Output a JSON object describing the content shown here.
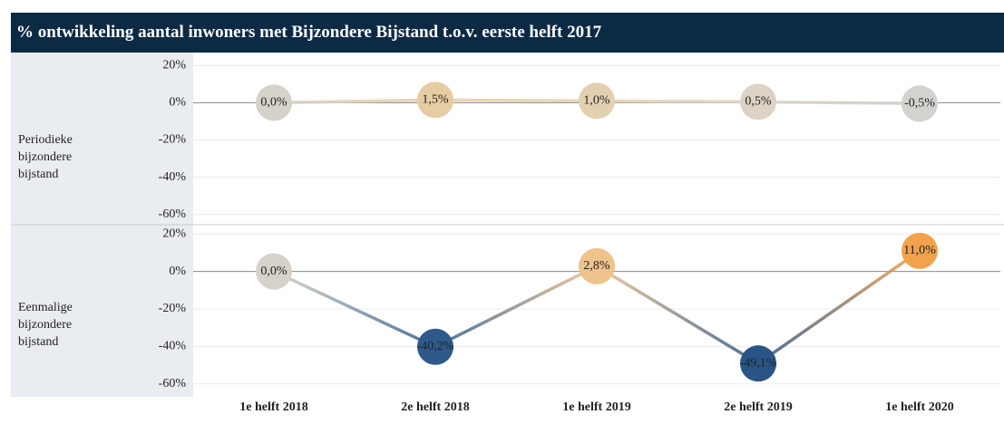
{
  "title": "% ontwikkeling aantal inwoners met Bijzondere Bijstand t.o.v. eerste helft 2017",
  "chart_data": [
    {
      "type": "line",
      "label": "Periodieke bijzondere bijstand",
      "values": [
        0,
        1.5,
        1.0,
        0.5,
        -0.5
      ],
      "value_labels": [
        "0,0%",
        "1,5%",
        "1,0%",
        "0,5%",
        "-0,5%"
      ],
      "colors": [
        "#d6d1c9",
        "#e6cca2",
        "#e3d0b0",
        "#ddd3c4",
        "#d4d2ce"
      ],
      "ylim": [
        -65,
        25
      ],
      "yticks": [
        {
          "value": 20,
          "label": "20%"
        },
        {
          "value": 0,
          "label": "0%"
        },
        {
          "value": -20,
          "label": "-20%"
        },
        {
          "value": -40,
          "label": "-40%"
        },
        {
          "value": -60,
          "label": "-60%"
        }
      ],
      "grid": true
    },
    {
      "type": "line",
      "label": "Eenmalige bijzondere bijstand",
      "categories": [
        "1e helft 2018",
        "2e helft 2018",
        "1e helft 2019",
        "2e helft 2019",
        "1e helft 2020"
      ],
      "values": [
        0,
        -40.2,
        2.8,
        -49.1,
        11.0
      ],
      "value_labels": [
        "0,0%",
        "-40,2%",
        "2,8%",
        "-49,1%",
        "11,0%"
      ],
      "colors": [
        "#d6d1c9",
        "#2d5a8a",
        "#efc38c",
        "#285585",
        "#f2a24c"
      ],
      "ylim": [
        -64,
        24
      ],
      "yticks": [
        {
          "value": 20,
          "label": "20%"
        },
        {
          "value": 0,
          "label": "0%"
        },
        {
          "value": -20,
          "label": "-20%"
        },
        {
          "value": -40,
          "label": "-40%"
        },
        {
          "value": -60,
          "label": "-60%"
        }
      ],
      "grid": true
    }
  ]
}
